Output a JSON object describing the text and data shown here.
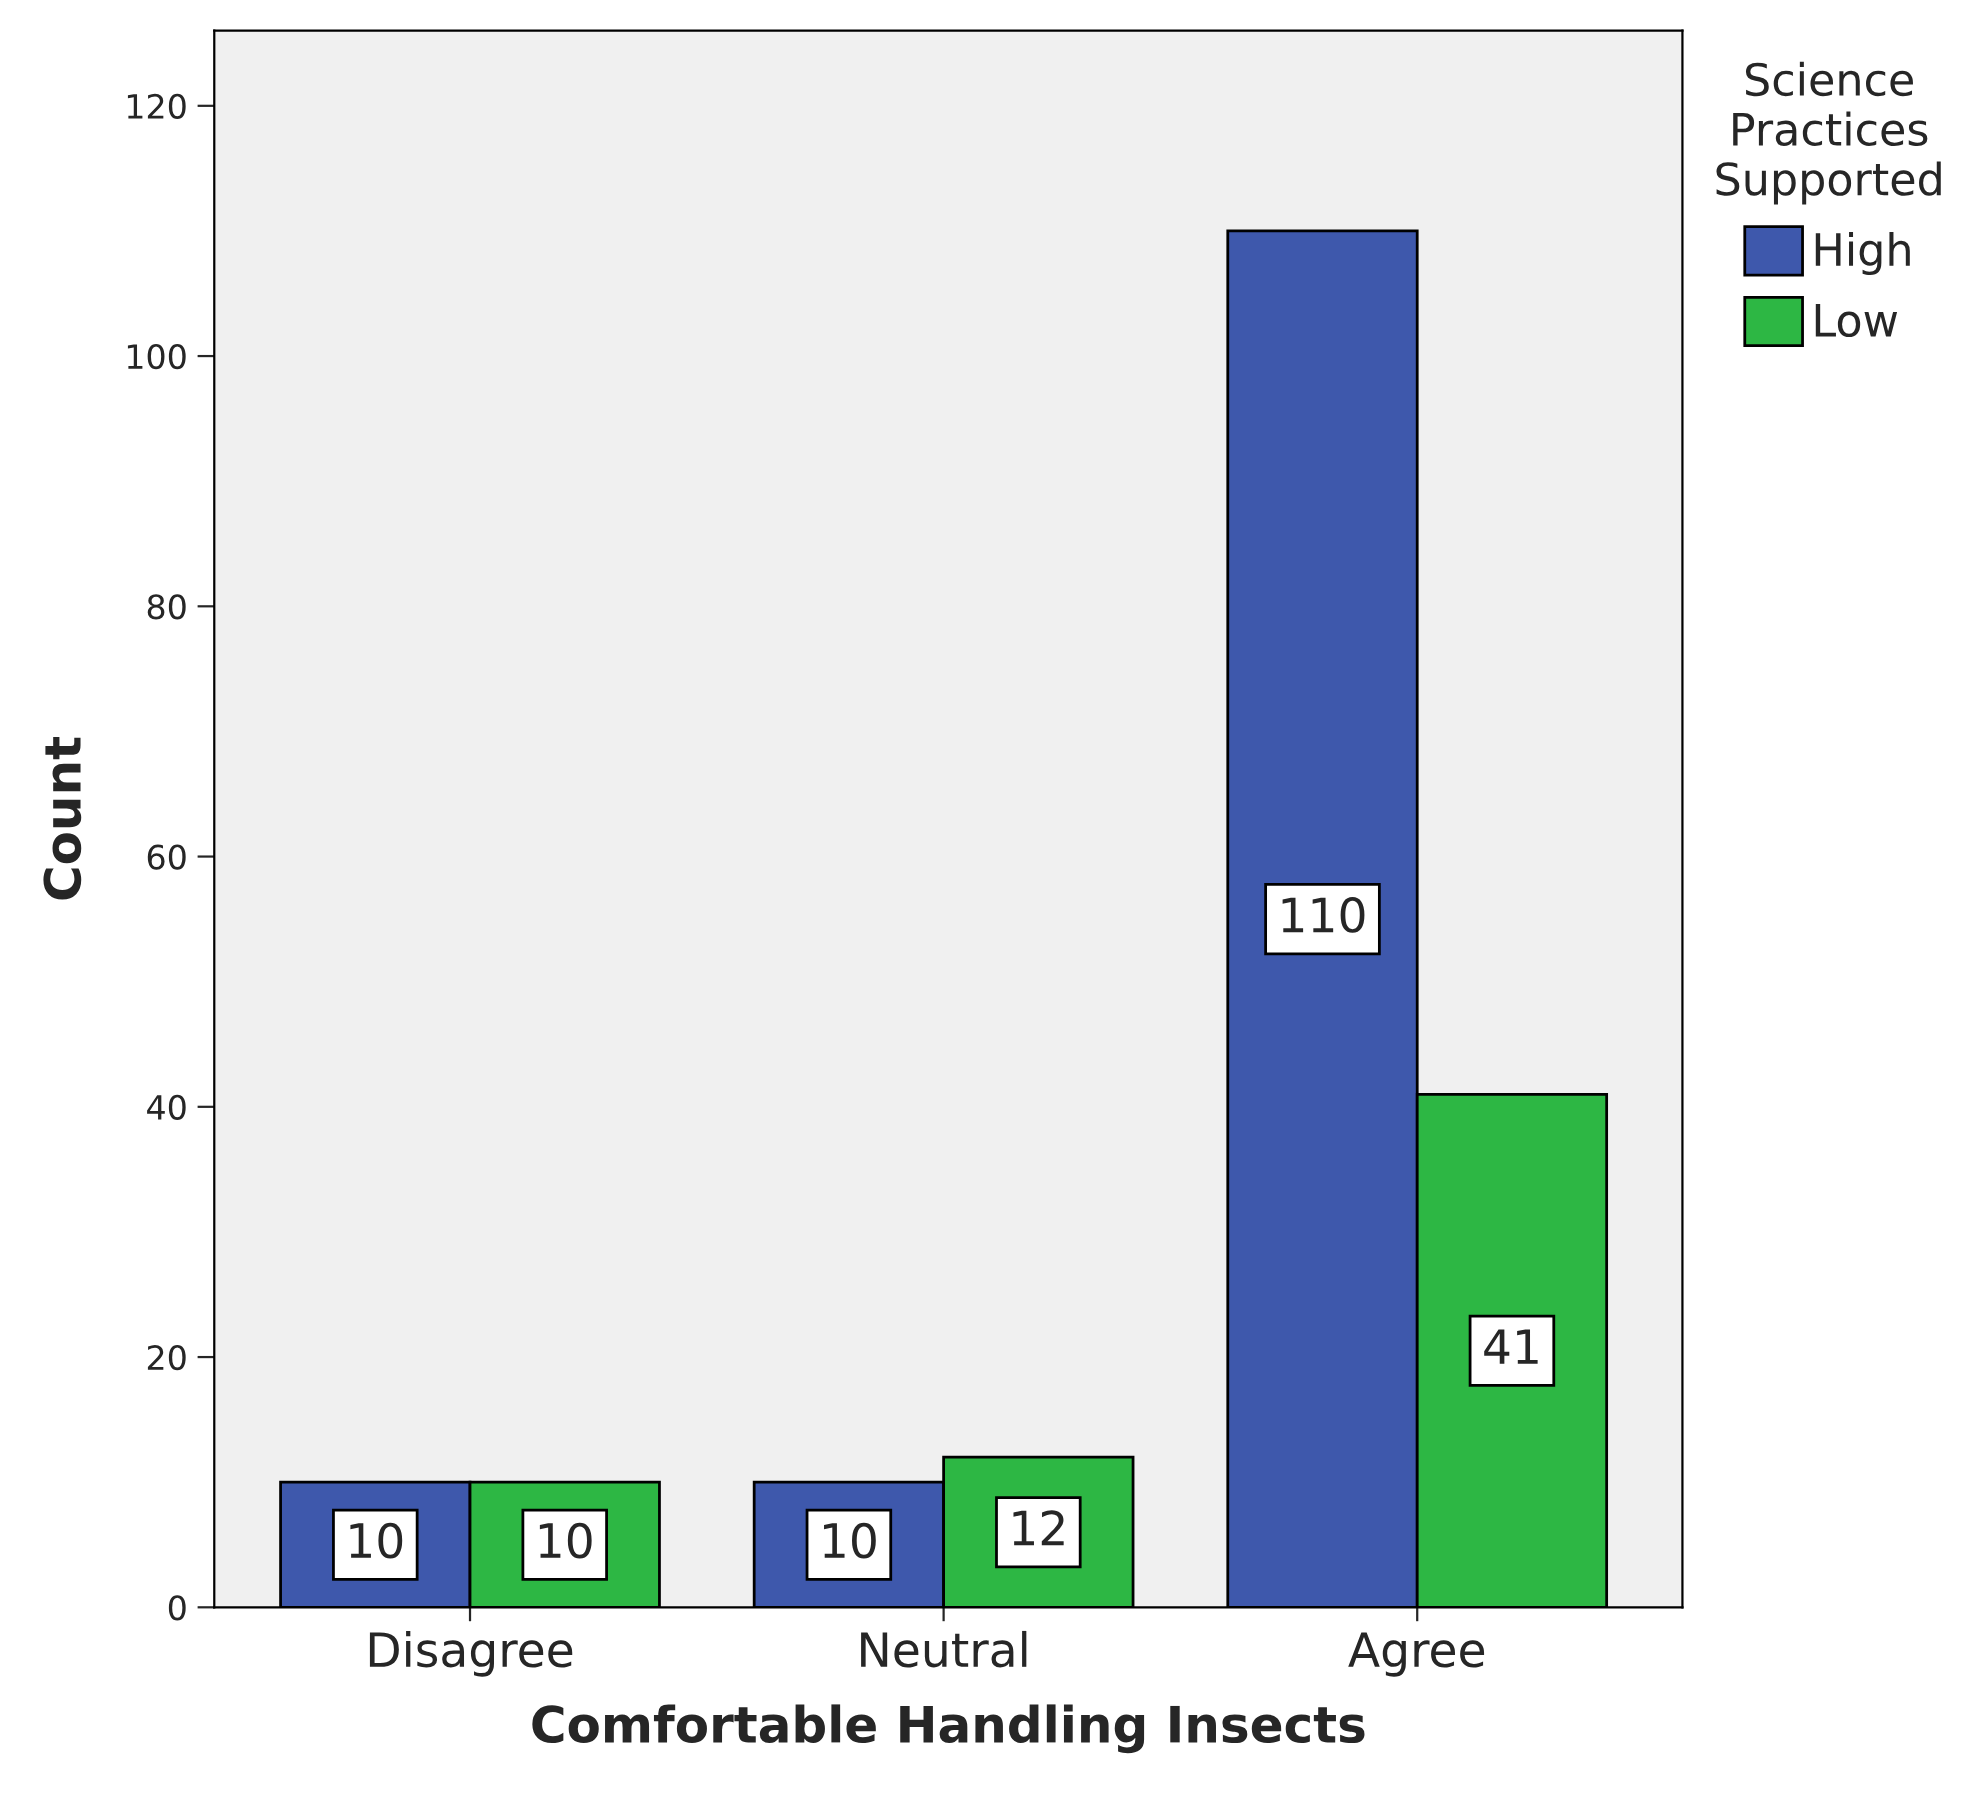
{
  "chart_data": {
    "type": "bar",
    "xlabel": "Comfortable Handling Insects",
    "ylabel": "Count",
    "legend_title": "Science Practices Supported",
    "categories": [
      "Disagree",
      "Neutral",
      "Agree"
    ],
    "series": [
      {
        "name": "High",
        "color": "#3e58ac",
        "values": [
          10,
          10,
          110
        ]
      },
      {
        "name": "Low",
        "color": "#2db744",
        "values": [
          10,
          12,
          41
        ]
      }
    ],
    "ylim": [
      0,
      126
    ],
    "yticks": [
      0,
      20,
      40,
      60,
      80,
      100,
      120
    ],
    "grid": false,
    "legend": "top right",
    "data_labels": true
  }
}
